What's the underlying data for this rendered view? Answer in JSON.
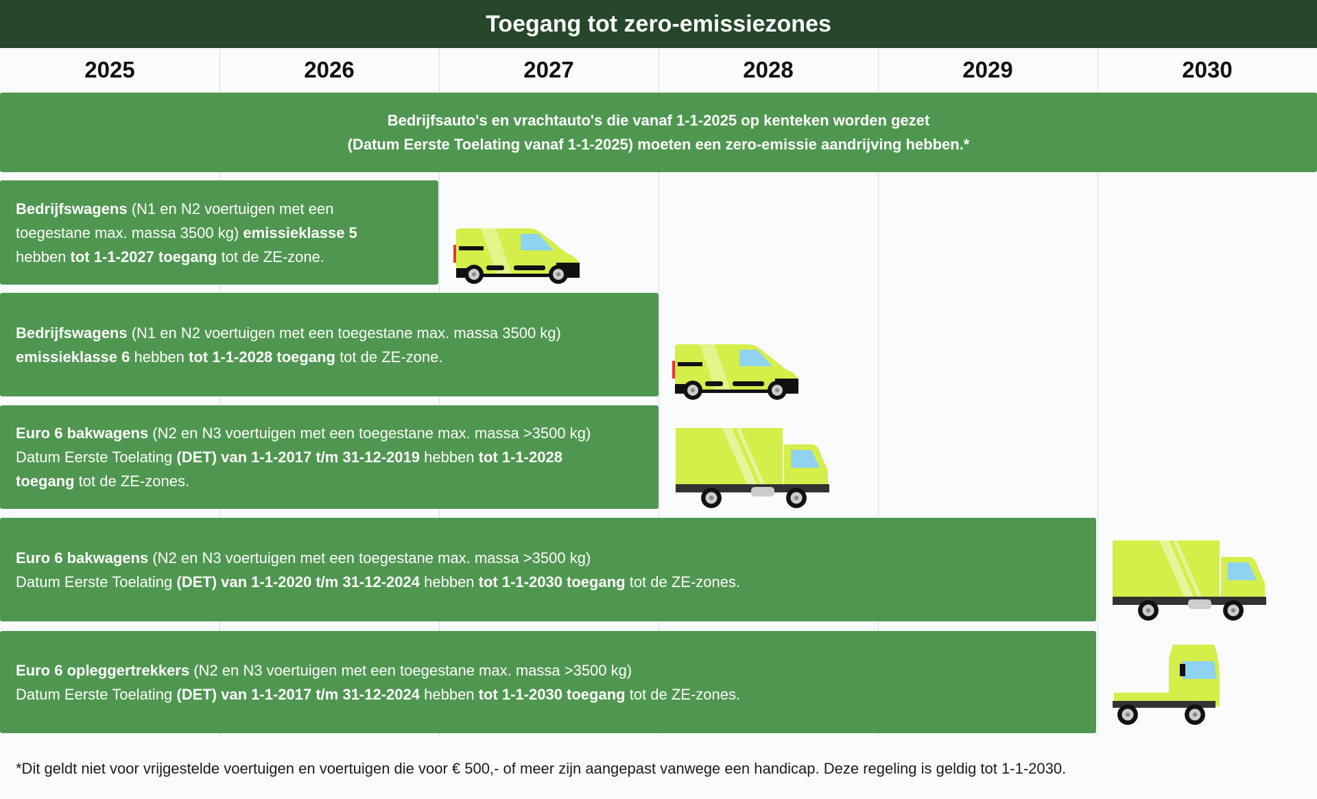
{
  "title": "Toegang tot zero-emissiezones",
  "years": [
    "2025",
    "2026",
    "2027",
    "2028",
    "2029",
    "2030"
  ],
  "colors": {
    "header": "#26472a",
    "band": "#4f9750",
    "vehicle": "#d4ee4a"
  },
  "banner": {
    "lines": [
      "Bedrijfsauto's en vrachtauto's die vanaf 1-1-2025 op kenteken worden gezet",
      "(Datum Eerste Toelating vanaf 1-1-2025) moeten een zero-emissie aandrijving hebben.*"
    ]
  },
  "rows": [
    {
      "vehicle": "van-icon",
      "lines": [
        [
          {
            "b": true,
            "t": "Bedrijfswagens"
          },
          {
            "b": false,
            "t": " (N1 en N2 voertuigen met een"
          }
        ],
        [
          {
            "b": false,
            "t": "toegestane max. massa 3500 kg) "
          },
          {
            "b": true,
            "t": "emissieklasse 5"
          }
        ],
        [
          {
            "b": false,
            "t": "hebben "
          },
          {
            "b": true,
            "t": "tot 1-1-2027 toegang"
          },
          {
            "b": false,
            "t": " tot de ZE-zone."
          }
        ]
      ]
    },
    {
      "vehicle": "van-icon",
      "lines": [
        [
          {
            "b": true,
            "t": "Bedrijfswagens"
          },
          {
            "b": false,
            "t": " (N1 en N2 voertuigen met een toegestane max. massa 3500 kg)"
          }
        ],
        [
          {
            "b": true,
            "t": "emissieklasse 6"
          },
          {
            "b": false,
            "t": " hebben "
          },
          {
            "b": true,
            "t": "tot 1-1-2028 toegang"
          },
          {
            "b": false,
            "t": " tot de ZE-zone."
          }
        ]
      ]
    },
    {
      "vehicle": "box-truck-icon",
      "lines": [
        [
          {
            "b": true,
            "t": "Euro 6 bakwagens"
          },
          {
            "b": false,
            "t": " (N2 en N3 voertuigen met een toegestane max. massa >3500 kg)"
          }
        ],
        [
          {
            "b": false,
            "t": "Datum Eerste Toelating "
          },
          {
            "b": true,
            "t": "(DET) van 1-1-2017 t/m 31-12-2019"
          },
          {
            "b": false,
            "t": " hebben "
          },
          {
            "b": true,
            "t": "tot 1-1-2028"
          }
        ],
        [
          {
            "b": true,
            "t": "toegang"
          },
          {
            "b": false,
            "t": " tot de ZE-zones."
          }
        ]
      ]
    },
    {
      "vehicle": "box-truck-icon",
      "lines": [
        [
          {
            "b": true,
            "t": "Euro 6 bakwagens"
          },
          {
            "b": false,
            "t": " (N2 en N3 voertuigen met een toegestane max. massa >3500 kg)"
          }
        ],
        [
          {
            "b": false,
            "t": "Datum Eerste Toelating "
          },
          {
            "b": true,
            "t": "(DET) van 1-1-2020 t/m 31-12-2024"
          },
          {
            "b": false,
            "t": " hebben "
          },
          {
            "b": true,
            "t": "tot 1-1-2030 toegang"
          },
          {
            "b": false,
            "t": " tot de ZE-zones."
          }
        ]
      ]
    },
    {
      "vehicle": "tractor-unit-icon",
      "lines": [
        [
          {
            "b": true,
            "t": "Euro 6 opleggertrekkers"
          },
          {
            "b": false,
            "t": " (N2 en N3 voertuigen met een toegestane max. massa >3500 kg)"
          }
        ],
        [
          {
            "b": false,
            "t": "Datum Eerste Toelating "
          },
          {
            "b": true,
            "t": "(DET) van 1-1-2017 t/m 31-12-2024"
          },
          {
            "b": false,
            "t": " hebben "
          },
          {
            "b": true,
            "t": "tot 1-1-2030 toegang"
          },
          {
            "b": false,
            "t": " tot de ZE-zones."
          }
        ]
      ]
    }
  ],
  "footnote": "*Dit geldt niet voor vrijgestelde voertuigen en voertuigen die voor € 500,- of meer zijn aangepast vanwege een handicap. Deze regeling is geldig tot 1-1-2030."
}
